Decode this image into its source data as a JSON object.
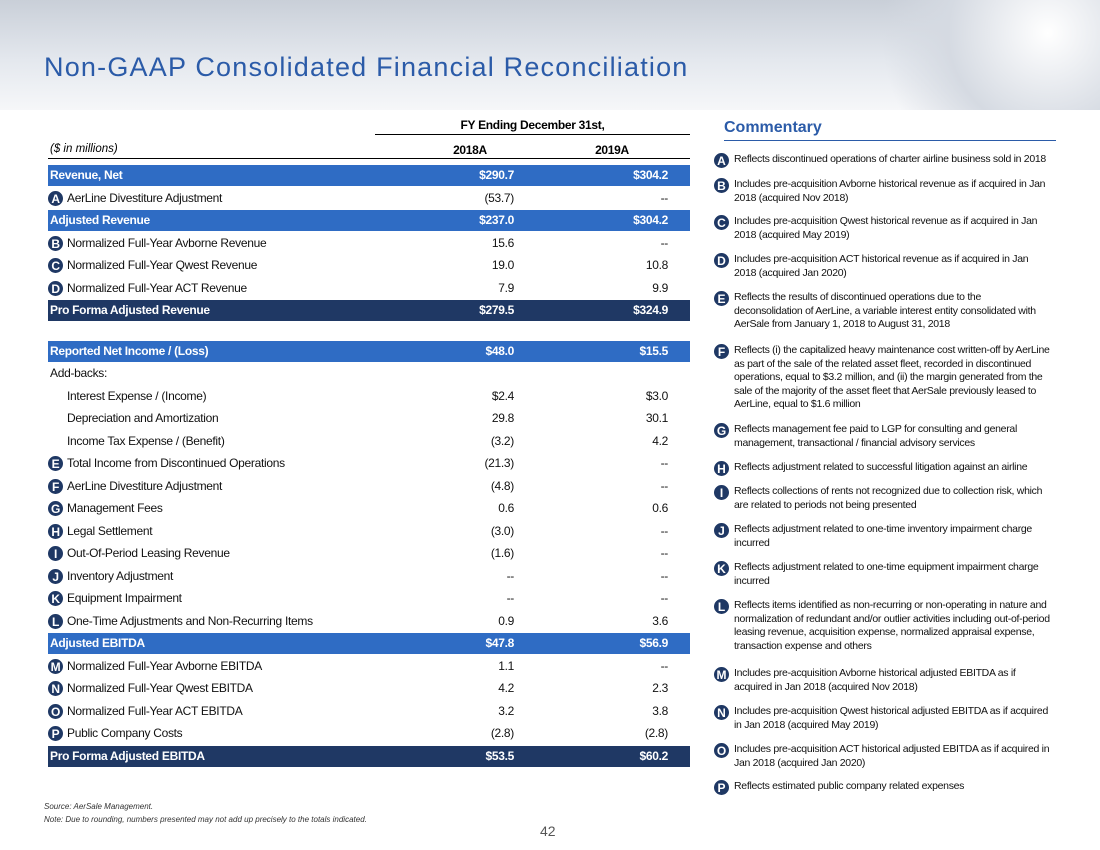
{
  "header": {
    "title": "Non-GAAP Consolidated Financial Reconciliation"
  },
  "table": {
    "period": "FY Ending December 31st,",
    "units": "($ in millions)",
    "columns": [
      "2018A",
      "2019A"
    ],
    "rows": [
      {
        "label": "Revenue, Net",
        "kind": "subtotal",
        "values": [
          "$290.7",
          "$304.2"
        ]
      },
      {
        "marker": "A",
        "label": "AerLine Divestiture Adjustment",
        "kind": "item",
        "values": [
          "(53.7)",
          "--"
        ]
      },
      {
        "label": "Adjusted Revenue",
        "kind": "subtotal",
        "values": [
          "$237.0",
          "$304.2"
        ]
      },
      {
        "marker": "B",
        "label": "Normalized Full-Year Avborne Revenue",
        "kind": "item",
        "values": [
          "15.6",
          "--"
        ]
      },
      {
        "marker": "C",
        "label": "Normalized Full-Year Qwest Revenue",
        "kind": "item",
        "values": [
          "19.0",
          "10.8"
        ]
      },
      {
        "marker": "D",
        "label": "Normalized Full-Year ACT Revenue",
        "kind": "item",
        "values": [
          "7.9",
          "9.9"
        ]
      },
      {
        "label": "Pro Forma Adjusted Revenue",
        "kind": "total",
        "values": [
          "$279.5",
          "$324.9"
        ]
      },
      {
        "label": "Reported Net Income / (Loss)",
        "kind": "subtotal",
        "values": [
          "$48.0",
          "$15.5"
        ]
      },
      {
        "label": "Add-backs:",
        "kind": "plain"
      },
      {
        "label": "Interest Expense / (Income)",
        "kind": "indent",
        "values": [
          "$2.4",
          "$3.0"
        ]
      },
      {
        "label": "Depreciation and Amortization",
        "kind": "indent",
        "values": [
          "29.8",
          "30.1"
        ]
      },
      {
        "label": "Income Tax Expense / (Benefit)",
        "kind": "indent",
        "values": [
          "(3.2)",
          "4.2"
        ]
      },
      {
        "marker": "E",
        "label": "Total Income from Discontinued Operations",
        "kind": "item",
        "values": [
          "(21.3)",
          "--"
        ]
      },
      {
        "marker": "F",
        "label": "AerLine Divestiture Adjustment",
        "kind": "item",
        "values": [
          "(4.8)",
          "--"
        ]
      },
      {
        "marker": "G",
        "label": "Management Fees",
        "kind": "item",
        "values": [
          "0.6",
          "0.6"
        ]
      },
      {
        "marker": "H",
        "label": "Legal Settlement",
        "kind": "item",
        "values": [
          "(3.0)",
          "--"
        ]
      },
      {
        "marker": "I",
        "label": "Out-Of-Period Leasing Revenue",
        "kind": "item",
        "values": [
          "(1.6)",
          "--"
        ]
      },
      {
        "marker": "J",
        "label": "Inventory Adjustment",
        "kind": "item",
        "values": [
          "--",
          "--"
        ]
      },
      {
        "marker": "K",
        "label": "Equipment Impairment",
        "kind": "item",
        "values": [
          "--",
          "--"
        ]
      },
      {
        "marker": "L",
        "label": "One-Time Adjustments and Non-Recurring Items",
        "kind": "item",
        "values": [
          "0.9",
          "3.6"
        ]
      },
      {
        "label": "Adjusted EBITDA",
        "kind": "subtotal",
        "values": [
          "$47.8",
          "$56.9"
        ]
      },
      {
        "marker": "M",
        "label": "Normalized Full-Year Avborne EBITDA",
        "kind": "item",
        "values": [
          "1.1",
          "--"
        ]
      },
      {
        "marker": "N",
        "label": "Normalized Full-Year Qwest EBITDA",
        "kind": "item",
        "values": [
          "4.2",
          "2.3"
        ]
      },
      {
        "marker": "O",
        "label": "Normalized Full-Year ACT EBITDA",
        "kind": "item",
        "values": [
          "3.2",
          "3.8"
        ]
      },
      {
        "marker": "P",
        "label": "Public Company Costs",
        "kind": "item",
        "values": [
          "(2.8)",
          "(2.8)"
        ]
      },
      {
        "label": "Pro Forma Adjusted EBITDA",
        "kind": "total",
        "values": [
          "$53.5",
          "$60.2"
        ]
      }
    ]
  },
  "commentary": {
    "title": "Commentary",
    "items": [
      {
        "marker": "A",
        "text": "Reflects discontinued operations of charter airline business sold in 2018"
      },
      {
        "marker": "B",
        "text": "Includes pre-acquisition Avborne historical revenue as if acquired in Jan 2018 (acquired Nov 2018)"
      },
      {
        "marker": "C",
        "text": "Includes pre-acquisition Qwest historical revenue as if acquired in Jan 2018 (acquired May 2019)"
      },
      {
        "marker": "D",
        "text": "Includes pre-acquisition ACT historical revenue as if acquired in Jan 2018 (acquired Jan 2020)"
      },
      {
        "marker": "E",
        "text": "Reflects the results of discontinued operations due to the deconsolidation of AerLine, a variable interest entity consolidated with AerSale from January 1, 2018 to August 31, 2018"
      },
      {
        "marker": "F",
        "text": "Reflects (i) the capitalized heavy maintenance cost written-off by AerLine as part of the sale of the related asset fleet, recorded in discontinued operations, equal to $3.2 million, and (ii) the margin generated from the sale of the majority of the asset fleet that AerSale previously leased to AerLine, equal to $1.6 million"
      },
      {
        "marker": "G",
        "text": "Reflects management fee paid to LGP for consulting and general management, transactional / financial advisory services"
      },
      {
        "marker": "H",
        "text": "Reflects adjustment related to successful litigation against an airline"
      },
      {
        "marker": "I",
        "text": "Reflects collections of rents not recognized due to collection risk, which are related to periods not being presented"
      },
      {
        "marker": "J",
        "text": "Reflects adjustment related to one-time inventory impairment charge incurred"
      },
      {
        "marker": "K",
        "text": "Reflects adjustment related to one-time equipment impairment charge incurred"
      },
      {
        "marker": "L",
        "text": "Reflects items identified as non-recurring or non-operating in nature and normalization of redundant and/or outlier activities including out-of-period leasing revenue, acquisition expense, normalized appraisal expense, transaction expense and others"
      },
      {
        "marker": "M",
        "text": "Includes pre-acquisition Avborne historical adjusted EBITDA as if acquired in Jan 2018 (acquired Nov 2018)"
      },
      {
        "marker": "N",
        "text": "Includes pre-acquisition Qwest historical adjusted EBITDA as if acquired in Jan 2018 (acquired May 2019)"
      },
      {
        "marker": "O",
        "text": "Includes pre-acquisition ACT historical adjusted EBITDA as if acquired in Jan 2018 (acquired Jan 2020)"
      },
      {
        "marker": "P",
        "text": "Reflects estimated public company related expenses"
      }
    ]
  },
  "footer": {
    "source": "Source: AerSale Management.",
    "note": "Note: Due to rounding, numbers presented may not add up precisely to the totals indicated.",
    "page": "42"
  }
}
